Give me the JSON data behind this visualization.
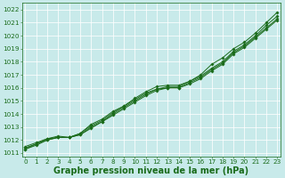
{
  "background_color": "#c8eaea",
  "grid_color": "#b8d8d8",
  "line_color": "#1a6b1a",
  "marker": "D",
  "markersize": 1.8,
  "linewidth": 0.7,
  "xlabel": "Graphe pression niveau de la mer (hPa)",
  "xlabel_fontsize": 7.0,
  "xlabel_color": "#1a6b1a",
  "xlabel_bold": true,
  "tick_fontsize": 5.2,
  "tick_color": "#1a6b1a",
  "xlim": [
    -0.3,
    23.3
  ],
  "ylim": [
    1010.7,
    1022.5
  ],
  "yticks": [
    1011,
    1012,
    1013,
    1014,
    1015,
    1016,
    1017,
    1018,
    1019,
    1020,
    1021,
    1022
  ],
  "xticks": [
    0,
    1,
    2,
    3,
    4,
    5,
    6,
    7,
    8,
    9,
    10,
    11,
    12,
    13,
    14,
    15,
    16,
    17,
    18,
    19,
    20,
    21,
    22,
    23
  ],
  "series": [
    [
      1011.5,
      1011.8,
      1012.1,
      1012.2,
      1012.2,
      1012.5,
      1013.2,
      1013.6,
      1014.2,
      1014.6,
      1015.2,
      1015.7,
      1016.1,
      1016.2,
      1016.2,
      1016.5,
      1017.0,
      1017.8,
      1018.3,
      1019.0,
      1019.5,
      1020.2,
      1021.0,
      1021.8
    ],
    [
      1011.4,
      1011.7,
      1012.1,
      1012.3,
      1012.2,
      1012.5,
      1013.1,
      1013.5,
      1014.1,
      1014.6,
      1015.1,
      1015.6,
      1015.9,
      1016.1,
      1016.1,
      1016.5,
      1016.9,
      1017.5,
      1018.0,
      1018.8,
      1019.3,
      1020.0,
      1020.8,
      1021.5
    ],
    [
      1011.3,
      1011.7,
      1012.0,
      1012.2,
      1012.2,
      1012.4,
      1013.0,
      1013.4,
      1014.0,
      1014.5,
      1015.0,
      1015.5,
      1015.9,
      1016.0,
      1016.0,
      1016.4,
      1016.8,
      1017.4,
      1017.9,
      1018.7,
      1019.2,
      1019.9,
      1020.6,
      1021.3
    ],
    [
      1011.3,
      1011.6,
      1012.0,
      1012.2,
      1012.2,
      1012.4,
      1012.9,
      1013.4,
      1013.9,
      1014.4,
      1014.9,
      1015.4,
      1015.8,
      1016.0,
      1016.0,
      1016.3,
      1016.7,
      1017.3,
      1017.8,
      1018.6,
      1019.1,
      1019.8,
      1020.5,
      1021.2
    ]
  ]
}
